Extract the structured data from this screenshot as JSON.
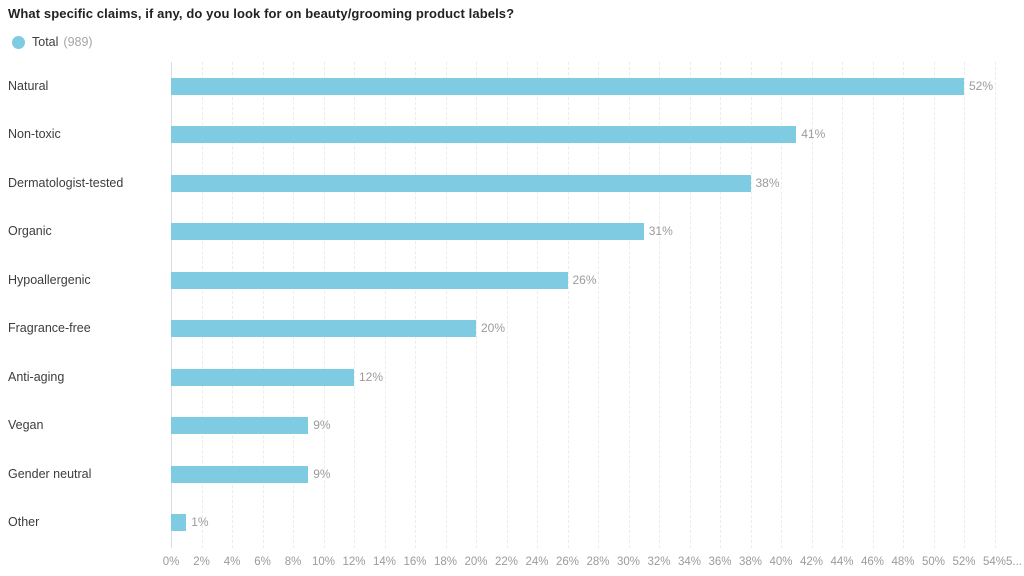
{
  "title": "What specific claims, if any, do you look for on beauty/grooming product labels?",
  "legend": {
    "label": "Total",
    "count": "(989)",
    "dot_color": "#7FCBE2"
  },
  "colors": {
    "bar": "#7FCBE2",
    "title_text": "#222222",
    "category_label": "#3D3D3D",
    "value_label": "#9B9B9B",
    "tick_label": "#9B9B9B",
    "gridline": "#ECECEC",
    "axis_line": "#DCDCDC"
  },
  "chart_data": {
    "type": "bar",
    "orientation": "horizontal",
    "title": "What specific claims, if any, do you look for on beauty/grooming product labels?",
    "categories": [
      "Natural",
      "Non-toxic",
      "Dermatologist-tested",
      "Organic",
      "Hypoallergenic",
      "Fragrance-free",
      "Anti-aging",
      "Vegan",
      "Gender neutral",
      "Other"
    ],
    "series": [
      {
        "name": "Total (989)",
        "values": [
          52,
          41,
          38,
          31,
          26,
          20,
          12,
          9,
          9,
          1
        ]
      }
    ],
    "value_labels": [
      "52%",
      "41%",
      "38%",
      "31%",
      "26%",
      "20%",
      "12%",
      "9%",
      "9%",
      "1%"
    ],
    "value_suffix": "%",
    "xlim": [
      0,
      56
    ],
    "x_tick_step": 2,
    "x_tick_labels": [
      "0%",
      "2%",
      "4%",
      "6%",
      "8%",
      "10%",
      "12%",
      "14%",
      "16%",
      "18%",
      "20%",
      "22%",
      "24%",
      "26%",
      "28%",
      "30%",
      "32%",
      "34%",
      "36%",
      "38%",
      "40%",
      "42%",
      "44%",
      "46%",
      "48%",
      "50%",
      "52%",
      "54%",
      "5..."
    ],
    "grid": true,
    "legend_position": "top-left",
    "bar_color": "#7FCBE2"
  }
}
